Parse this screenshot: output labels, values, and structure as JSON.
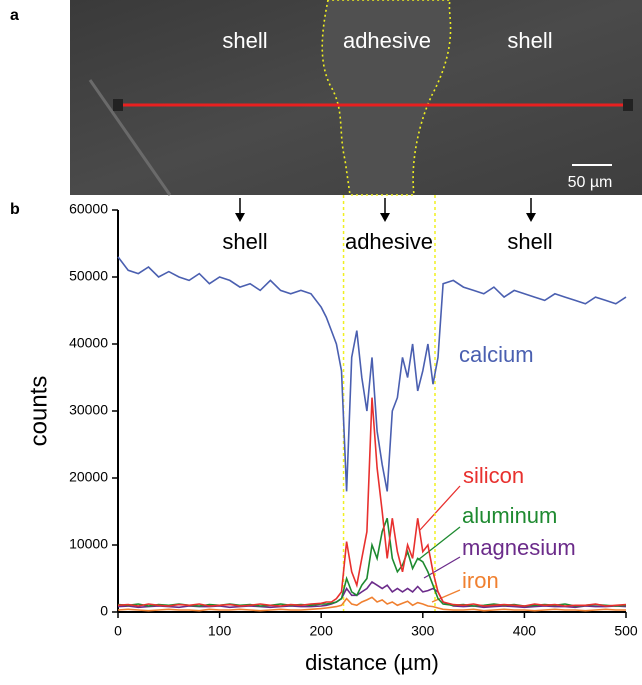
{
  "image": {
    "label": "a",
    "annotations": [
      "shell",
      "adhesive",
      "shell"
    ],
    "scale_bar": "50 µm"
  },
  "chart_data": {
    "type": "line",
    "label": "b",
    "xlabel": "distance (µm)",
    "ylabel": "counts",
    "annotations": [
      "shell",
      "adhesive",
      "shell"
    ],
    "boundaries": [
      222,
      312
    ],
    "xlim": [
      0,
      500
    ],
    "xticks": [
      0,
      100,
      200,
      300,
      400,
      500
    ],
    "ylim": [
      0,
      60000
    ],
    "yticks": [
      0,
      10000,
      20000,
      30000,
      40000,
      50000,
      60000
    ],
    "x": [
      0,
      10,
      20,
      30,
      40,
      50,
      60,
      70,
      80,
      90,
      100,
      110,
      120,
      130,
      140,
      150,
      160,
      170,
      180,
      190,
      200,
      205,
      210,
      215,
      220,
      225,
      230,
      235,
      240,
      245,
      250,
      255,
      260,
      265,
      270,
      275,
      280,
      285,
      290,
      295,
      300,
      305,
      310,
      315,
      320,
      330,
      340,
      350,
      360,
      370,
      380,
      390,
      400,
      410,
      420,
      430,
      440,
      450,
      460,
      470,
      480,
      490,
      500
    ],
    "series": [
      {
        "name": "calcium",
        "color": "#4a5fb0",
        "values": [
          53000,
          51000,
          50500,
          51500,
          50000,
          50800,
          50000,
          49500,
          50500,
          49000,
          50000,
          49500,
          48500,
          49000,
          48000,
          49500,
          48000,
          47500,
          48000,
          47500,
          45500,
          44000,
          42000,
          40000,
          36000,
          18000,
          38000,
          42000,
          35000,
          30000,
          38000,
          27000,
          22000,
          18000,
          30000,
          32000,
          38000,
          35000,
          40000,
          33000,
          36000,
          40000,
          34000,
          38000,
          49000,
          49500,
          48500,
          48000,
          47500,
          48500,
          47000,
          48000,
          47500,
          47000,
          46500,
          47500,
          47000,
          46500,
          46000,
          47000,
          46500,
          46000,
          47000
        ]
      },
      {
        "name": "silicon",
        "color": "#e8302e",
        "values": [
          1000,
          1100,
          900,
          1200,
          1000,
          900,
          1100,
          1000,
          1200,
          900,
          1000,
          1100,
          900,
          1000,
          1200,
          1000,
          900,
          1100,
          1000,
          1200,
          1300,
          1500,
          1500,
          2000,
          3000,
          10500,
          6000,
          4000,
          8000,
          12000,
          32000,
          21500,
          15000,
          8000,
          14000,
          9000,
          6000,
          10000,
          8000,
          14000,
          9000,
          10000,
          6000,
          3000,
          1500,
          1100,
          1000,
          1200,
          900,
          1000,
          1100,
          1000,
          900,
          1200,
          1000,
          1100,
          900,
          1000,
          1000,
          1200,
          900,
          1000,
          1100
        ]
      },
      {
        "name": "aluminum",
        "color": "#1e8a30",
        "values": [
          1100,
          1000,
          1200,
          900,
          1100,
          1000,
          1200,
          1000,
          900,
          1100,
          1000,
          1200,
          1000,
          1100,
          900,
          1000,
          1200,
          1000,
          1100,
          1000,
          1200,
          1200,
          1300,
          1500,
          2000,
          5000,
          3000,
          2500,
          4000,
          5000,
          10000,
          8000,
          12000,
          14000,
          8000,
          6000,
          7000,
          9000,
          6500,
          8000,
          7500,
          6000,
          4000,
          2000,
          1200,
          1000,
          1100,
          900,
          1000,
          1200,
          1000,
          1100,
          900,
          1000,
          1100,
          1000,
          1200,
          900,
          1000,
          1100,
          1000,
          900,
          1000
        ]
      },
      {
        "name": "magnesium",
        "color": "#6b2b8a",
        "values": [
          800,
          900,
          700,
          800,
          900,
          800,
          700,
          900,
          800,
          800,
          900,
          700,
          800,
          900,
          800,
          700,
          800,
          900,
          800,
          800,
          900,
          1000,
          1200,
          1500,
          2000,
          3500,
          2500,
          2500,
          3000,
          3500,
          4500,
          4000,
          3500,
          4000,
          3000,
          3500,
          3000,
          3500,
          3000,
          3800,
          3000,
          3200,
          3500,
          3000,
          1500,
          900,
          800,
          900,
          700,
          800,
          900,
          800,
          700,
          800,
          900,
          800,
          800,
          700,
          900,
          800,
          800,
          900,
          800
        ]
      },
      {
        "name": "iron",
        "color": "#f08030",
        "values": [
          300,
          400,
          300,
          200,
          300,
          400,
          300,
          300,
          200,
          400,
          300,
          300,
          400,
          300,
          200,
          300,
          400,
          300,
          300,
          400,
          500,
          600,
          700,
          800,
          1000,
          2000,
          1200,
          1000,
          1500,
          1800,
          2200,
          1500,
          1800,
          1200,
          1500,
          1000,
          1300,
          1600,
          1000,
          1400,
          1200,
          900,
          800,
          600,
          400,
          300,
          300,
          400,
          200,
          300,
          400,
          300,
          300,
          200,
          300,
          400,
          300,
          300,
          200,
          300,
          400,
          300,
          300
        ]
      }
    ]
  }
}
